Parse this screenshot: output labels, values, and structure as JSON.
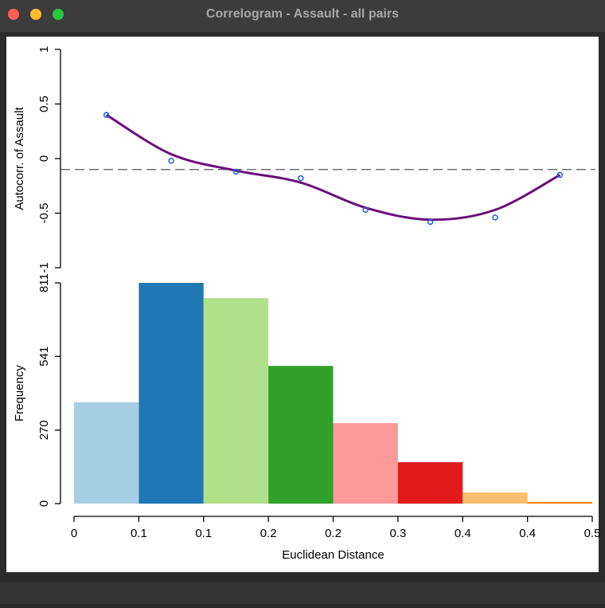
{
  "window": {
    "title": "Correlogram - Assault - all pairs"
  },
  "chart_data": [
    {
      "type": "scatter",
      "ylabel": "Autocorr. of Assault",
      "x": [
        0.03125,
        0.09375,
        0.15625,
        0.21875,
        0.28125,
        0.34375,
        0.40625,
        0.46875
      ],
      "values": [
        0.4,
        -0.02,
        -0.12,
        -0.18,
        -0.47,
        -0.58,
        -0.54,
        -0.15
      ],
      "fit": [
        0.4,
        0.04,
        -0.11,
        -0.22,
        -0.45,
        -0.56,
        -0.47,
        -0.15
      ],
      "color": "#1f5fd6",
      "fit_color": "#6a0f7a",
      "reference_line": -0.1,
      "xlim": [
        0,
        0.5
      ],
      "ylim": [
        -1,
        1
      ],
      "yticks": [
        -1,
        -0.5,
        0,
        0.5,
        1
      ]
    },
    {
      "type": "histogram",
      "ylabel": "Frequency",
      "xlabel": "Euclidean Distance",
      "bins": [
        0,
        0.0625,
        0.125,
        0.1875,
        0.25,
        0.3125,
        0.375,
        0.4375,
        0.5
      ],
      "values": [
        372,
        811,
        755,
        506,
        296,
        152,
        41,
        6
      ],
      "colors": [
        "#a6cee3",
        "#1f78b4",
        "#b2df8a",
        "#33a02c",
        "#fb9a99",
        "#e31a1c",
        "#fdbf6f",
        "#ff7f00"
      ],
      "xlim": [
        0,
        0.5
      ],
      "ylim": [
        0,
        811
      ],
      "yticks": [
        0,
        270,
        541,
        811
      ],
      "xticks": [
        0,
        {
          "value": 0.0625,
          "label": "0.1"
        },
        {
          "value": 0.125,
          "label": "0.1"
        },
        {
          "value": 0.1875,
          "label": "0.2"
        },
        {
          "value": 0.25,
          "label": "0.2"
        },
        {
          "value": 0.3125,
          "label": "0.3"
        },
        {
          "value": 0.375,
          "label": "0.4"
        },
        {
          "value": 0.4375,
          "label": "0.4"
        },
        0.5
      ]
    }
  ]
}
